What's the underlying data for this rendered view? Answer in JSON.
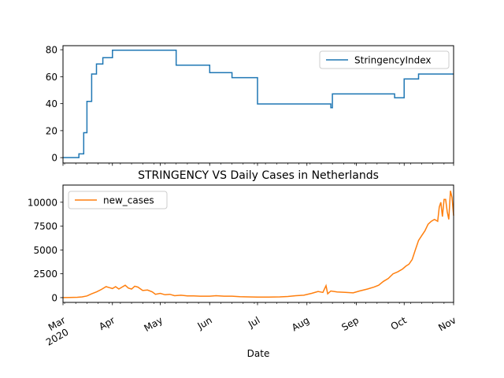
{
  "chart_data": [
    {
      "type": "line",
      "title": "",
      "xlabel": "",
      "ylabel": "",
      "ylim": [
        -4,
        83
      ],
      "yticks": [
        0,
        20,
        40,
        60,
        80
      ],
      "legend": "top-right",
      "grid": false,
      "series": [
        {
          "name": "StringencyIndex",
          "color": "#1f77b4",
          "step": true,
          "points": [
            [
              "2020-03-01",
              0
            ],
            [
              "2020-03-10",
              0
            ],
            [
              "2020-03-11",
              2.78
            ],
            [
              "2020-03-13",
              2.78
            ],
            [
              "2020-03-14",
              18.5
            ],
            [
              "2020-03-15",
              18.5
            ],
            [
              "2020-03-16",
              41.7
            ],
            [
              "2020-03-18",
              41.7
            ],
            [
              "2020-03-19",
              62
            ],
            [
              "2020-03-21",
              62
            ],
            [
              "2020-03-22",
              69.4
            ],
            [
              "2020-03-25",
              69.4
            ],
            [
              "2020-03-26",
              74.1
            ],
            [
              "2020-03-31",
              74.1
            ],
            [
              "2020-04-01",
              79.6
            ],
            [
              "2020-05-10",
              79.6
            ],
            [
              "2020-05-11",
              68.5
            ],
            [
              "2020-05-31",
              68.5
            ],
            [
              "2020-06-01",
              63
            ],
            [
              "2020-06-14",
              63
            ],
            [
              "2020-06-15",
              59.3
            ],
            [
              "2020-06-30",
              59.3
            ],
            [
              "2020-07-01",
              39.8
            ],
            [
              "2020-08-15",
              39.8
            ],
            [
              "2020-08-16",
              37
            ],
            [
              "2020-08-17",
              47.2
            ],
            [
              "2020-09-24",
              47.2
            ],
            [
              "2020-09-25",
              44.4
            ],
            [
              "2020-09-30",
              44.4
            ],
            [
              "2020-10-01",
              58.3
            ],
            [
              "2020-10-09",
              58.3
            ],
            [
              "2020-10-10",
              62
            ],
            [
              "2020-11-01",
              62
            ]
          ]
        }
      ]
    },
    {
      "type": "line",
      "title": "STRINGENCY VS Daily Cases in Netherlands",
      "xlabel": "Date",
      "ylabel": "",
      "ylim": [
        -500,
        11800
      ],
      "yticks": [
        0,
        2500,
        5000,
        7500,
        10000
      ],
      "ytick_labels": [
        "0",
        "2500",
        "5000",
        "7500",
        "10000"
      ],
      "legend": "top-left",
      "grid": false,
      "xlim": [
        "2020-03-01",
        "2020-11-01"
      ],
      "xticks": [
        {
          "date": "2020-03-01",
          "label": "Mar",
          "year": "2020"
        },
        {
          "date": "2020-04-01",
          "label": "Apr"
        },
        {
          "date": "2020-05-01",
          "label": "May"
        },
        {
          "date": "2020-06-01",
          "label": "Jun"
        },
        {
          "date": "2020-07-01",
          "label": "Jul"
        },
        {
          "date": "2020-08-01",
          "label": "Aug"
        },
        {
          "date": "2020-09-01",
          "label": "Sep"
        },
        {
          "date": "2020-10-01",
          "label": "Oct"
        },
        {
          "date": "2020-11-01",
          "label": "Nov"
        }
      ],
      "series": [
        {
          "name": "new_cases",
          "color": "#ff7f0e",
          "points": [
            [
              "2020-03-01",
              0
            ],
            [
              "2020-03-05",
              10
            ],
            [
              "2020-03-10",
              40
            ],
            [
              "2020-03-13",
              80
            ],
            [
              "2020-03-16",
              180
            ],
            [
              "2020-03-19",
              400
            ],
            [
              "2020-03-22",
              600
            ],
            [
              "2020-03-25",
              850
            ],
            [
              "2020-03-28",
              1150
            ],
            [
              "2020-03-30",
              1050
            ],
            [
              "2020-04-01",
              950
            ],
            [
              "2020-04-03",
              1150
            ],
            [
              "2020-04-05",
              900
            ],
            [
              "2020-04-07",
              1100
            ],
            [
              "2020-04-09",
              1300
            ],
            [
              "2020-04-11",
              1000
            ],
            [
              "2020-04-13",
              900
            ],
            [
              "2020-04-15",
              1200
            ],
            [
              "2020-04-17",
              1100
            ],
            [
              "2020-04-20",
              750
            ],
            [
              "2020-04-23",
              800
            ],
            [
              "2020-04-26",
              600
            ],
            [
              "2020-04-28",
              350
            ],
            [
              "2020-05-01",
              450
            ],
            [
              "2020-05-04",
              300
            ],
            [
              "2020-05-07",
              350
            ],
            [
              "2020-05-10",
              200
            ],
            [
              "2020-05-14",
              250
            ],
            [
              "2020-05-18",
              180
            ],
            [
              "2020-05-22",
              180
            ],
            [
              "2020-05-26",
              150
            ],
            [
              "2020-06-01",
              150
            ],
            [
              "2020-06-05",
              200
            ],
            [
              "2020-06-10",
              150
            ],
            [
              "2020-06-15",
              150
            ],
            [
              "2020-06-20",
              100
            ],
            [
              "2020-06-25",
              80
            ],
            [
              "2020-07-01",
              60
            ],
            [
              "2020-07-08",
              60
            ],
            [
              "2020-07-15",
              80
            ],
            [
              "2020-07-20",
              120
            ],
            [
              "2020-07-25",
              200
            ],
            [
              "2020-07-30",
              250
            ],
            [
              "2020-08-04",
              450
            ],
            [
              "2020-08-08",
              650
            ],
            [
              "2020-08-11",
              550
            ],
            [
              "2020-08-13",
              1250
            ],
            [
              "2020-08-14",
              400
            ],
            [
              "2020-08-16",
              700
            ],
            [
              "2020-08-20",
              600
            ],
            [
              "2020-08-25",
              550
            ],
            [
              "2020-08-30",
              500
            ],
            [
              "2020-09-03",
              700
            ],
            [
              "2020-09-08",
              900
            ],
            [
              "2020-09-12",
              1100
            ],
            [
              "2020-09-15",
              1300
            ],
            [
              "2020-09-18",
              1700
            ],
            [
              "2020-09-21",
              2000
            ],
            [
              "2020-09-24",
              2500
            ],
            [
              "2020-09-27",
              2700
            ],
            [
              "2020-09-30",
              3000
            ],
            [
              "2020-10-02",
              3300
            ],
            [
              "2020-10-04",
              3500
            ],
            [
              "2020-10-06",
              4000
            ],
            [
              "2020-10-08",
              5000
            ],
            [
              "2020-10-10",
              6000
            ],
            [
              "2020-10-12",
              6500
            ],
            [
              "2020-10-14",
              7000
            ],
            [
              "2020-10-16",
              7700
            ],
            [
              "2020-10-18",
              8000
            ],
            [
              "2020-10-20",
              8200
            ],
            [
              "2020-10-22",
              8000
            ],
            [
              "2020-10-23",
              9500
            ],
            [
              "2020-10-24",
              10000
            ],
            [
              "2020-10-25",
              8500
            ],
            [
              "2020-10-26",
              10300
            ],
            [
              "2020-10-27",
              10300
            ],
            [
              "2020-10-28",
              9000
            ],
            [
              "2020-10-29",
              8200
            ],
            [
              "2020-10-30",
              11200
            ],
            [
              "2020-10-31",
              10500
            ],
            [
              "2020-11-01",
              8600
            ]
          ]
        }
      ]
    }
  ]
}
